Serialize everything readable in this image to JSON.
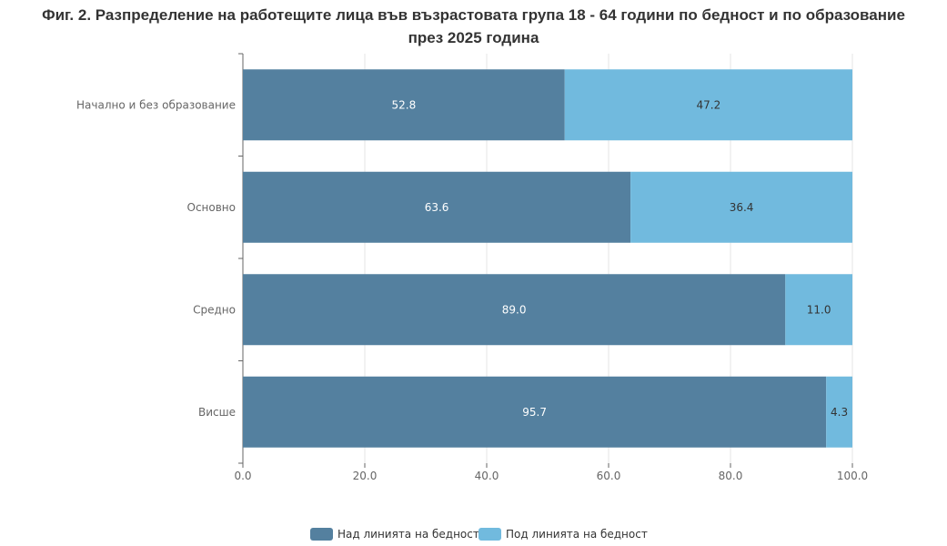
{
  "chart_data": {
    "type": "bar",
    "orientation": "horizontal",
    "stacked": true,
    "title_line1": "Фиг. 2. Разпределение на работещите лица във възрастовата група 18 - 64 години по бедност и по образование",
    "title_line2": "през 2025 година",
    "categories": [
      "Начално и без образование",
      "Основно",
      "Средно",
      "Висше"
    ],
    "series": [
      {
        "name": "Над линията на бедност",
        "color": "#54809f",
        "label_color": "#ffffff",
        "values": [
          52.8,
          63.6,
          89.0,
          95.7
        ]
      },
      {
        "name": "Под линията на бедност",
        "color": "#71bade",
        "label_color": "#333333",
        "values": [
          47.2,
          36.4,
          11.0,
          4.3
        ]
      }
    ],
    "xlim": [
      0,
      100
    ],
    "xticks": [
      "0.0",
      "20.0",
      "40.0",
      "60.0",
      "80.0",
      "100.0"
    ],
    "grid": true,
    "legend": "bottom",
    "xlabel": "",
    "ylabel": ""
  }
}
